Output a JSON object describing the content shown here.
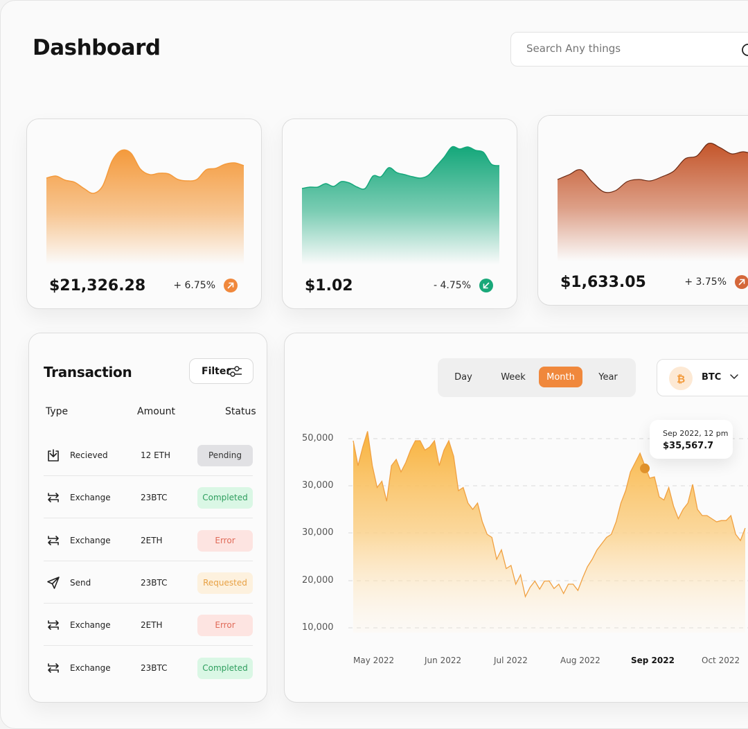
{
  "header": {
    "title": "Dashboard",
    "search_placeholder": "Search Any things"
  },
  "cards": [
    {
      "price": "$21,326.28",
      "change": "+ 6.75%",
      "trend": "up",
      "color": "#f49a3c",
      "badge_color": "#f0883c",
      "spark": [
        55,
        58,
        52,
        49,
        40,
        33,
        44,
        80,
        95,
        91,
        68,
        60,
        62,
        61,
        53,
        51,
        53,
        67,
        69,
        75,
        77,
        73
      ]
    },
    {
      "price": "$1.02",
      "change": "- 4.75%",
      "trend": "down",
      "color": "#14a77a",
      "badge_color": "#19a879",
      "spark": [
        40,
        42,
        42,
        47,
        43,
        50,
        48,
        42,
        40,
        58,
        57,
        70,
        63,
        60,
        57,
        55,
        59,
        72,
        85,
        100,
        97,
        100,
        95,
        92,
        75,
        73
      ]
    },
    {
      "price": "$1,633.05",
      "change": "+ 3.75%",
      "trend": "up",
      "color": "#c4552a",
      "badge_color": "#d4673a",
      "spark": [
        48,
        55,
        62,
        44,
        30,
        32,
        45,
        48,
        46,
        52,
        60,
        78,
        82,
        100,
        94,
        85,
        88,
        84
      ]
    }
  ],
  "transactions": {
    "title": "Transaction",
    "filter_label": "Filter",
    "columns": {
      "type": "Type",
      "amount": "Amount",
      "status": "Status"
    },
    "rows": [
      {
        "icon": "download-icon",
        "type": "Recieved",
        "amount": "12 ETH",
        "status": "Pending",
        "status_bg": "#e1e1e4",
        "status_fg": "#333333"
      },
      {
        "icon": "exchange-icon",
        "type": "Exchange",
        "amount": "23BTC",
        "status": "Completed",
        "status_bg": "#daf7e5",
        "status_fg": "#2e9e5e"
      },
      {
        "icon": "exchange-icon",
        "type": "Exchange",
        "amount": "2ETH",
        "status": "Error",
        "status_bg": "#fde4e1",
        "status_fg": "#e06a58"
      },
      {
        "icon": "send-icon",
        "type": "Send",
        "amount": "23BTC",
        "status": "Requested",
        "status_bg": "#fdf1de",
        "status_fg": "#e8a144"
      },
      {
        "icon": "exchange-icon",
        "type": "Exchange",
        "amount": "2ETH",
        "status": "Error",
        "status_bg": "#fde4e1",
        "status_fg": "#e06a58"
      },
      {
        "icon": "exchange-icon",
        "type": "Exchange",
        "amount": "23BTC",
        "status": "Completed",
        "status_bg": "#daf7e5",
        "status_fg": "#2e9e5e"
      }
    ]
  },
  "main_chart": {
    "periods": [
      "Day",
      "Week",
      "Month",
      "Year"
    ],
    "active_period": "Month",
    "coin": "BTC",
    "tooltip": {
      "date": "Sep 2022, 12 pm",
      "value": "$35,567.7"
    }
  },
  "chart_data": {
    "type": "area",
    "y_tick_labels": [
      "50,000",
      "30,000",
      "30,000",
      "20,000",
      "10,000"
    ],
    "x_tick_labels": [
      "May 2022",
      "Jun 2022",
      "Jul 2022",
      "Aug 2022",
      "Sep 2022",
      "Oct 2022"
    ],
    "highlighted_x_label": "Sep 2022",
    "values": [
      40000,
      36000,
      39000,
      41500,
      36000,
      32500,
      33500,
      30300,
      36000,
      37000,
      35000,
      36500,
      38500,
      40000,
      40000,
      38500,
      39000,
      40000,
      36000,
      38500,
      40000,
      37500,
      32000,
      32500,
      30000,
      29000,
      30000,
      27000,
      25000,
      24500,
      21000,
      22500,
      19500,
      20000,
      17000,
      18500,
      15000,
      16500,
      17500,
      16200,
      17500,
      17500,
      16300,
      17000,
      15500,
      17000,
      17000,
      16000,
      18000,
      19800,
      21000,
      22500,
      23500,
      24500,
      25000,
      27000,
      30000,
      32000,
      35000,
      36500,
      38000,
      36000,
      34000,
      34200,
      31000,
      30500,
      32500,
      29500,
      27500,
      29000,
      30000,
      33000,
      29000,
      28000,
      28000,
      27500,
      27000,
      27200,
      27200,
      28000,
      25000,
      24000,
      26000
    ],
    "highlight": {
      "label": "Sep 2022, 12 pm",
      "value": 35567.7
    }
  }
}
